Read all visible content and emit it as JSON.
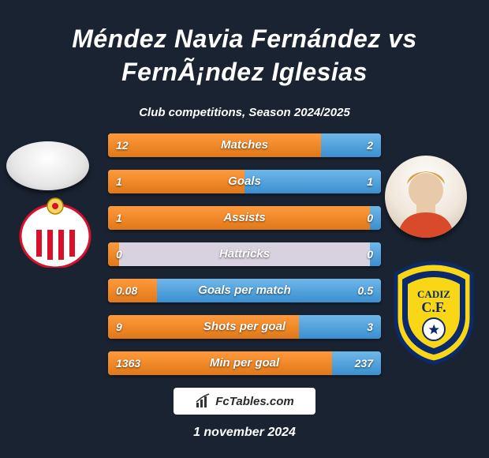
{
  "title": "Méndez Navia Fernández vs FernÃ¡ndez Iglesias",
  "subtitle": "Club competitions, Season 2024/2025",
  "date": "1 november 2024",
  "footer_brand": "FcTables.com",
  "colors": {
    "bg": "#1a2332",
    "left_fill_top": "#ff9a3c",
    "left_fill_bottom": "#e07818",
    "right_fill_top": "#6fb7e9",
    "right_fill_bottom": "#3a8fd0",
    "track": "#d8d2e0"
  },
  "rows": [
    {
      "label": "Matches",
      "left": "12",
      "right": "2",
      "left_pct": 78,
      "right_pct": 22
    },
    {
      "label": "Goals",
      "left": "1",
      "right": "1",
      "left_pct": 50,
      "right_pct": 50
    },
    {
      "label": "Assists",
      "left": "1",
      "right": "0",
      "left_pct": 96,
      "right_pct": 4
    },
    {
      "label": "Hattricks",
      "left": "0",
      "right": "0",
      "left_pct": 4,
      "right_pct": 4
    },
    {
      "label": "Goals per match",
      "left": "0.08",
      "right": "0.5",
      "left_pct": 18,
      "right_pct": 82
    },
    {
      "label": "Shots per goal",
      "left": "9",
      "right": "3",
      "left_pct": 70,
      "right_pct": 30
    },
    {
      "label": "Min per goal",
      "left": "1363",
      "right": "237",
      "left_pct": 82,
      "right_pct": 18
    }
  ],
  "left_club": {
    "name": "Sporting Gijón",
    "primary": "#d9102a",
    "secondary": "#ffffff"
  },
  "right_club": {
    "name": "Cádiz CF",
    "primary": "#f9d616",
    "secondary": "#0a2a6b"
  }
}
